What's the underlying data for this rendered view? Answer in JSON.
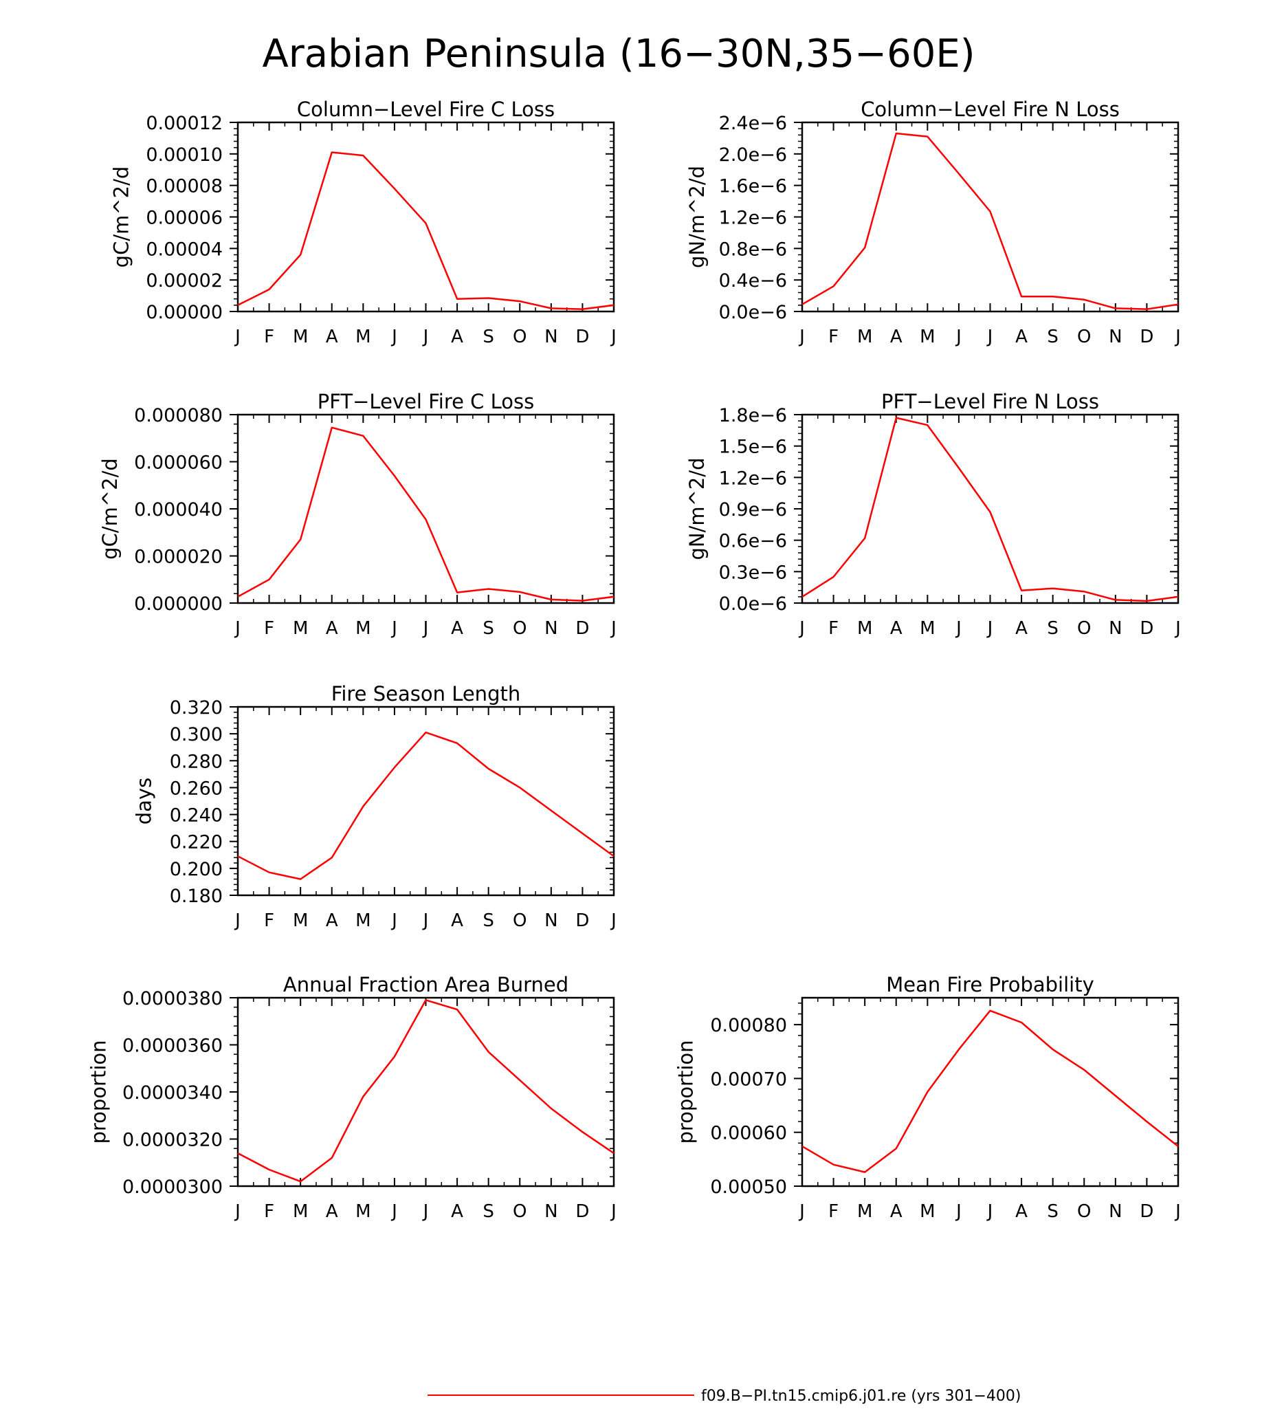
{
  "figure": {
    "title": "Arabian Peninsula (16−30N,35−60E)",
    "line_color": "#ff0000",
    "legend": {
      "label": "f09.B−PI.tn15.cmip6.j01.re (yrs 301−400)",
      "placement": "bottom-center"
    }
  },
  "chart_data": [
    {
      "type": "line",
      "title": "Column−Level Fire C Loss",
      "ylabel": "gC/m^2/d",
      "categories": [
        "J",
        "F",
        "M",
        "A",
        "M",
        "J",
        "J",
        "A",
        "S",
        "O",
        "N",
        "D",
        "J"
      ],
      "yticks": [
        0.0,
        2e-05,
        4e-05,
        6e-05,
        8e-05,
        0.0001,
        0.00012
      ],
      "ytick_labels": [
        "0.00000",
        "0.00002",
        "0.00004",
        "0.00006",
        "0.00008",
        "0.00010",
        "0.00012"
      ],
      "ylim": [
        0,
        0.00012
      ],
      "series": [
        {
          "values": [
            4e-06,
            1.4e-05,
            3.6e-05,
            0.000101,
            9.9e-05,
            7.8e-05,
            5.6e-05,
            8e-06,
            8.5e-06,
            6.5e-06,
            2e-06,
            1.5e-06,
            4e-06
          ]
        }
      ]
    },
    {
      "type": "line",
      "title": "Column−Level Fire N Loss",
      "ylabel": "gN/m^2/d",
      "categories": [
        "J",
        "F",
        "M",
        "A",
        "M",
        "J",
        "J",
        "A",
        "S",
        "O",
        "N",
        "D",
        "J"
      ],
      "yticks": [
        0.0,
        4e-07,
        8e-07,
        1.2e-06,
        1.6e-06,
        2e-06,
        2.4e-06
      ],
      "ytick_labels": [
        "0.0e−6",
        "0.4e−6",
        "0.8e−6",
        "1.2e−6",
        "1.6e−6",
        "2.0e−6",
        "2.4e−6"
      ],
      "ylim": [
        0,
        2.4e-06
      ],
      "series": [
        {
          "values": [
            9e-08,
            3.2e-07,
            8.1e-07,
            2.26e-06,
            2.22e-06,
            1.75e-06,
            1.27e-06,
            1.9e-07,
            1.9e-07,
            1.5e-07,
            4e-08,
            3e-08,
            9e-08
          ]
        }
      ]
    },
    {
      "type": "line",
      "title": "PFT−Level Fire C Loss",
      "ylabel": "gC/m^2/d",
      "categories": [
        "J",
        "F",
        "M",
        "A",
        "M",
        "J",
        "J",
        "A",
        "S",
        "O",
        "N",
        "D",
        "J"
      ],
      "yticks": [
        0.0,
        2e-05,
        4e-05,
        6e-05,
        8e-05
      ],
      "ytick_labels": [
        "0.000000",
        "0.000020",
        "0.000040",
        "0.000060",
        "0.000080"
      ],
      "ylim": [
        0,
        8e-05
      ],
      "series": [
        {
          "values": [
            2.7e-06,
            1e-05,
            2.7e-05,
            7.45e-05,
            7.1e-05,
            5.4e-05,
            3.55e-05,
            4.5e-06,
            6e-06,
            4.7e-06,
            1.5e-06,
            1e-06,
            2.7e-06
          ]
        }
      ]
    },
    {
      "type": "line",
      "title": "PFT−Level Fire N Loss",
      "ylabel": "gN/m^2/d",
      "categories": [
        "J",
        "F",
        "M",
        "A",
        "M",
        "J",
        "J",
        "A",
        "S",
        "O",
        "N",
        "D",
        "J"
      ],
      "yticks": [
        0.0,
        3e-07,
        6e-07,
        9e-07,
        1.2e-06,
        1.5e-06,
        1.8e-06
      ],
      "ytick_labels": [
        "0.0e−6",
        "0.3e−6",
        "0.6e−6",
        "0.9e−6",
        "1.2e−6",
        "1.5e−6",
        "1.8e−6"
      ],
      "ylim": [
        0,
        1.8e-06
      ],
      "series": [
        {
          "values": [
            6e-08,
            2.5e-07,
            6.2e-07,
            1.77e-06,
            1.7e-06,
            1.29e-06,
            8.7e-07,
            1.2e-07,
            1.4e-07,
            1.1e-07,
            3e-08,
            2e-08,
            6e-08
          ]
        }
      ]
    },
    {
      "type": "line",
      "title": "Fire Season Length",
      "ylabel": "days",
      "categories": [
        "J",
        "F",
        "M",
        "A",
        "M",
        "J",
        "J",
        "A",
        "S",
        "O",
        "N",
        "D",
        "J"
      ],
      "yticks": [
        0.18,
        0.2,
        0.22,
        0.24,
        0.26,
        0.28,
        0.3,
        0.32
      ],
      "ytick_labels": [
        "0.180",
        "0.200",
        "0.220",
        "0.240",
        "0.260",
        "0.280",
        "0.300",
        "0.320"
      ],
      "ylim": [
        0.18,
        0.32
      ],
      "series": [
        {
          "values": [
            0.209,
            0.197,
            0.192,
            0.208,
            0.246,
            0.275,
            0.301,
            0.293,
            0.274,
            0.26,
            0.243,
            0.226,
            0.209
          ]
        }
      ]
    },
    {
      "type": "line",
      "title": "Annual Fraction Area Burned",
      "ylabel": "proportion",
      "categories": [
        "J",
        "F",
        "M",
        "A",
        "M",
        "J",
        "J",
        "A",
        "S",
        "O",
        "N",
        "D",
        "J"
      ],
      "yticks": [
        3e-05,
        3.2e-05,
        3.4e-05,
        3.6e-05,
        3.8e-05
      ],
      "ytick_labels": [
        "0.0000300",
        "0.0000320",
        "0.0000340",
        "0.0000360",
        "0.0000380"
      ],
      "ylim": [
        3e-05,
        3.8e-05
      ],
      "series": [
        {
          "values": [
            3.14e-05,
            3.07e-05,
            3.02e-05,
            3.12e-05,
            3.38e-05,
            3.55e-05,
            3.79e-05,
            3.75e-05,
            3.57e-05,
            3.45e-05,
            3.33e-05,
            3.23e-05,
            3.14e-05
          ]
        }
      ]
    },
    {
      "type": "line",
      "title": "Mean Fire Probability",
      "ylabel": "proportion",
      "categories": [
        "J",
        "F",
        "M",
        "A",
        "M",
        "J",
        "J",
        "A",
        "S",
        "O",
        "N",
        "D",
        "J"
      ],
      "yticks": [
        0.0005,
        0.0006,
        0.0007,
        0.0008
      ],
      "ytick_labels": [
        "0.00050",
        "0.00060",
        "0.00070",
        "0.00080"
      ],
      "ylim": [
        0.0005,
        0.00085
      ],
      "series": [
        {
          "values": [
            0.000574,
            0.00054,
            0.000526,
            0.00057,
            0.000675,
            0.000754,
            0.000826,
            0.000804,
            0.000754,
            0.000716,
            0.000668,
            0.00062,
            0.000574
          ]
        }
      ]
    }
  ]
}
